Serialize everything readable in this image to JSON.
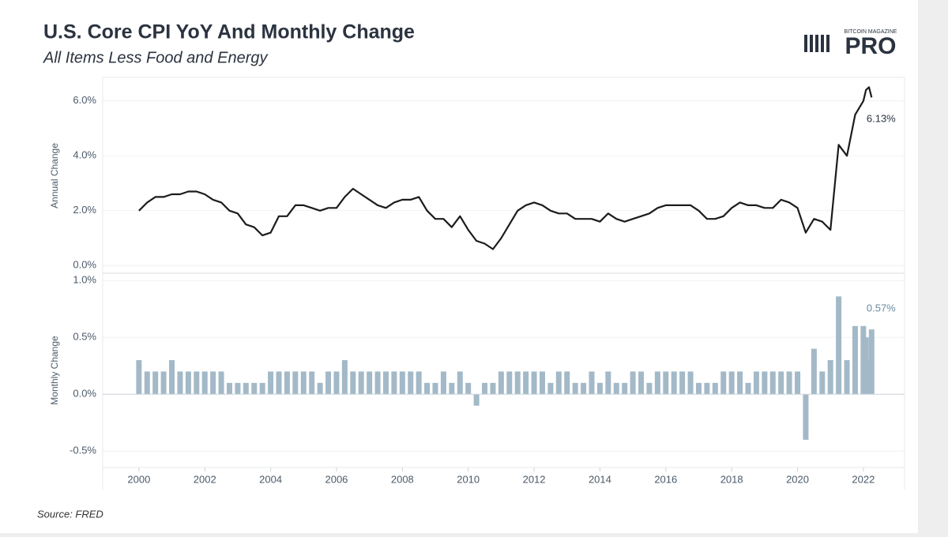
{
  "title": "U.S. Core CPI YoY And Monthly Change",
  "subtitle": "All Items Less Food and Energy",
  "logo": {
    "top": "BITCOIN MAGAZINE",
    "main": "PRO"
  },
  "source": "Source: FRED",
  "chart_data": [
    {
      "type": "line",
      "y_label": "Annual Change",
      "color": "#1c1c1c",
      "grid": true,
      "x": [
        2000,
        2000.25,
        2000.5,
        2000.75,
        2001,
        2001.25,
        2001.5,
        2001.75,
        2002,
        2002.25,
        2002.5,
        2002.75,
        2003,
        2003.25,
        2003.5,
        2003.75,
        2004,
        2004.25,
        2004.5,
        2004.75,
        2005,
        2005.25,
        2005.5,
        2005.75,
        2006,
        2006.25,
        2006.5,
        2006.75,
        2007,
        2007.25,
        2007.5,
        2007.75,
        2008,
        2008.25,
        2008.5,
        2008.75,
        2009,
        2009.25,
        2009.5,
        2009.75,
        2010,
        2010.25,
        2010.5,
        2010.75,
        2011,
        2011.25,
        2011.5,
        2011.75,
        2012,
        2012.25,
        2012.5,
        2012.75,
        2013,
        2013.25,
        2013.5,
        2013.75,
        2014,
        2014.25,
        2014.5,
        2014.75,
        2015,
        2015.25,
        2015.5,
        2015.75,
        2016,
        2016.25,
        2016.5,
        2016.75,
        2017,
        2017.25,
        2017.5,
        2017.75,
        2018,
        2018.25,
        2018.5,
        2018.75,
        2019,
        2019.25,
        2019.5,
        2019.75,
        2020,
        2020.25,
        2020.5,
        2020.75,
        2021,
        2021.25,
        2021.5,
        2021.75,
        2022,
        2022.08,
        2022.17,
        2022.25
      ],
      "values": [
        2.0,
        2.3,
        2.5,
        2.5,
        2.6,
        2.6,
        2.7,
        2.7,
        2.6,
        2.4,
        2.3,
        2.0,
        1.9,
        1.5,
        1.4,
        1.1,
        1.2,
        1.8,
        1.8,
        2.2,
        2.2,
        2.1,
        2.0,
        2.1,
        2.1,
        2.5,
        2.8,
        2.6,
        2.4,
        2.2,
        2.1,
        2.3,
        2.4,
        2.4,
        2.5,
        2.0,
        1.7,
        1.7,
        1.4,
        1.8,
        1.3,
        0.9,
        0.8,
        0.6,
        1.0,
        1.5,
        2.0,
        2.2,
        2.3,
        2.2,
        2.0,
        1.9,
        1.9,
        1.7,
        1.7,
        1.7,
        1.6,
        1.9,
        1.7,
        1.6,
        1.7,
        1.8,
        1.9,
        2.1,
        2.2,
        2.2,
        2.2,
        2.2,
        2.0,
        1.7,
        1.7,
        1.8,
        2.1,
        2.3,
        2.2,
        2.2,
        2.1,
        2.1,
        2.4,
        2.3,
        2.1,
        1.2,
        1.7,
        1.6,
        1.3,
        4.4,
        4.0,
        5.5,
        6.0,
        6.4,
        6.5,
        6.13
      ],
      "value_labels": [
        null,
        null,
        null,
        null,
        null,
        null,
        null,
        null,
        null,
        null,
        null,
        null,
        null,
        null,
        null,
        null,
        null,
        null,
        null,
        null,
        null,
        null,
        null,
        null,
        null,
        null,
        null,
        null,
        null,
        null,
        null,
        null,
        null,
        null,
        null,
        null,
        null,
        null,
        null,
        null,
        null,
        null,
        null,
        null,
        null,
        null,
        null,
        null,
        null,
        null,
        null,
        null,
        null,
        null,
        null,
        null,
        null,
        null,
        null,
        null,
        null,
        null,
        null,
        null,
        null,
        null,
        null,
        null,
        null,
        null,
        null,
        null,
        null,
        null,
        null,
        null,
        null,
        null,
        null,
        null,
        null,
        null,
        null,
        null,
        null,
        null,
        null,
        null,
        null,
        null,
        null,
        "6.13%"
      ],
      "xlim": [
        1998.9,
        2023.25
      ],
      "ylim": [
        -0.25,
        6.8
      ],
      "yticks": [
        {
          "value": 0,
          "label": "0.0%"
        },
        {
          "value": 2,
          "label": "2.0%"
        },
        {
          "value": 4,
          "label": "4.0%"
        },
        {
          "value": 6,
          "label": "6.0%"
        }
      ]
    },
    {
      "type": "bar",
      "y_label": "Monthly Change",
      "color": "#a3b9c8",
      "grid": true,
      "x": [
        2000,
        2000.25,
        2000.5,
        2000.75,
        2001,
        2001.25,
        2001.5,
        2001.75,
        2002,
        2002.25,
        2002.5,
        2002.75,
        2003,
        2003.25,
        2003.5,
        2003.75,
        2004,
        2004.25,
        2004.5,
        2004.75,
        2005,
        2005.25,
        2005.5,
        2005.75,
        2006,
        2006.25,
        2006.5,
        2006.75,
        2007,
        2007.25,
        2007.5,
        2007.75,
        2008,
        2008.25,
        2008.5,
        2008.75,
        2009,
        2009.25,
        2009.5,
        2009.75,
        2010,
        2010.25,
        2010.5,
        2010.75,
        2011,
        2011.25,
        2011.5,
        2011.75,
        2012,
        2012.25,
        2012.5,
        2012.75,
        2013,
        2013.25,
        2013.5,
        2013.75,
        2014,
        2014.25,
        2014.5,
        2014.75,
        2015,
        2015.25,
        2015.5,
        2015.75,
        2016,
        2016.25,
        2016.5,
        2016.75,
        2017,
        2017.25,
        2017.5,
        2017.75,
        2018,
        2018.25,
        2018.5,
        2018.75,
        2019,
        2019.25,
        2019.5,
        2019.75,
        2020,
        2020.25,
        2020.5,
        2020.75,
        2021,
        2021.25,
        2021.5,
        2021.75,
        2022,
        2022.08,
        2022.17,
        2022.25
      ],
      "values": [
        0.3,
        0.2,
        0.2,
        0.2,
        0.3,
        0.2,
        0.2,
        0.2,
        0.2,
        0.2,
        0.2,
        0.1,
        0.1,
        0.1,
        0.1,
        0.1,
        0.2,
        0.2,
        0.2,
        0.2,
        0.2,
        0.2,
        0.1,
        0.2,
        0.2,
        0.3,
        0.2,
        0.2,
        0.2,
        0.2,
        0.2,
        0.2,
        0.2,
        0.2,
        0.2,
        0.1,
        0.1,
        0.2,
        0.1,
        0.2,
        0.1,
        -0.1,
        0.1,
        0.1,
        0.2,
        0.2,
        0.2,
        0.2,
        0.2,
        0.2,
        0.1,
        0.2,
        0.2,
        0.1,
        0.1,
        0.2,
        0.1,
        0.2,
        0.1,
        0.1,
        0.2,
        0.2,
        0.1,
        0.2,
        0.2,
        0.2,
        0.2,
        0.2,
        0.1,
        0.1,
        0.1,
        0.2,
        0.2,
        0.2,
        0.1,
        0.2,
        0.2,
        0.2,
        0.2,
        0.2,
        0.2,
        -0.4,
        0.4,
        0.2,
        0.3,
        0.86,
        0.3,
        0.6,
        0.6,
        0.5,
        0.3,
        0.57
      ],
      "value_labels": [
        null,
        null,
        null,
        null,
        null,
        null,
        null,
        null,
        null,
        null,
        null,
        null,
        null,
        null,
        null,
        null,
        null,
        null,
        null,
        null,
        null,
        null,
        null,
        null,
        null,
        null,
        null,
        null,
        null,
        null,
        null,
        null,
        null,
        null,
        null,
        null,
        null,
        null,
        null,
        null,
        null,
        null,
        null,
        null,
        null,
        null,
        null,
        null,
        null,
        null,
        null,
        null,
        null,
        null,
        null,
        null,
        null,
        null,
        null,
        null,
        null,
        null,
        null,
        null,
        null,
        null,
        null,
        null,
        null,
        null,
        null,
        null,
        null,
        null,
        null,
        null,
        null,
        null,
        null,
        null,
        null,
        null,
        null,
        null,
        null,
        null,
        null,
        null,
        null,
        null,
        null,
        "0.57%"
      ],
      "xlim": [
        1998.9,
        2023.25
      ],
      "ylim": [
        -0.63,
        1.05
      ],
      "yticks": [
        {
          "value": -0.5,
          "label": "-0.5%"
        },
        {
          "value": 0,
          "label": "0.0%"
        },
        {
          "value": 0.5,
          "label": "0.5%"
        },
        {
          "value": 1,
          "label": "1.0%"
        }
      ],
      "xticks": [
        2000,
        2002,
        2004,
        2006,
        2008,
        2010,
        2012,
        2014,
        2016,
        2018,
        2020,
        2022
      ]
    }
  ]
}
